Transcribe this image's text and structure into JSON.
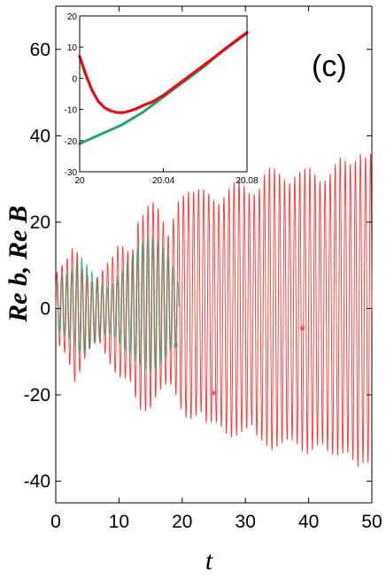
{
  "chart_data": [
    {
      "type": "line",
      "panel_label": "(c)",
      "xlabel": "t",
      "ylabel": "Re b, Re B",
      "xlim": [
        0,
        50
      ],
      "ylim": [
        -45,
        70
      ],
      "xticks": [
        0,
        10,
        20,
        30,
        40,
        50
      ],
      "yticks": [
        -40,
        -20,
        0,
        20,
        40,
        60
      ],
      "grid": false,
      "series": [
        {
          "color": "#ff2020",
          "kind": "oscillation-envelope",
          "envelope": {
            "t": [
              0,
              1,
              2,
              3,
              4,
              5,
              6,
              7,
              8,
              9,
              10,
              11,
              12,
              13,
              14,
              15,
              16,
              17,
              18,
              19,
              20,
              21,
              22,
              23,
              24,
              25,
              26,
              27,
              28,
              29,
              30,
              31,
              32,
              33,
              34,
              35,
              36,
              37,
              38,
              39,
              40,
              41,
              42,
              43,
              44,
              45,
              46,
              47,
              48,
              49,
              50
            ],
            "upper": [
              8,
              10,
              12,
              15,
              10,
              8,
              6,
              8,
              10,
              12,
              15,
              14,
              12,
              20,
              22,
              25,
              24,
              20,
              16,
              24,
              26,
              27,
              27,
              28,
              27,
              25,
              24,
              27,
              29,
              30,
              28,
              26,
              27,
              31,
              33,
              32,
              30,
              29,
              31,
              32,
              33,
              31,
              29,
              30,
              33,
              35,
              34,
              33,
              36,
              35,
              36
            ],
            "lower": [
              -8,
              -9,
              -12,
              -17,
              -14,
              -10,
              -8,
              -8,
              -11,
              -14,
              -16,
              -16,
              -17,
              -23,
              -24,
              -23,
              -20,
              -18,
              -17,
              -20,
              -24,
              -26,
              -25,
              -24,
              -27,
              -26,
              -27,
              -29,
              -30,
              -29,
              -28,
              -27,
              -30,
              -31,
              -33,
              -32,
              -31,
              -30,
              -31,
              -33,
              -34,
              -32,
              -31,
              -33,
              -34,
              -34,
              -33,
              -35,
              -37,
              -35,
              -37
            ]
          },
          "samples": 4000
        },
        {
          "color": "#2aa070",
          "kind": "oscillation-envelope",
          "envelope": {
            "t": [
              0,
              1,
              2,
              3,
              4,
              5,
              6,
              7,
              8,
              9,
              10,
              11,
              12,
              13,
              14,
              15,
              16,
              17,
              18,
              19,
              19.5
            ],
            "upper": [
              6,
              8,
              8,
              10,
              12,
              10,
              8,
              6,
              5,
              6,
              8,
              10,
              12,
              14,
              16,
              17,
              16,
              14,
              12,
              8,
              5
            ],
            "lower": [
              -5,
              -6,
              -7,
              -9,
              -11,
              -10,
              -8,
              -7,
              -6,
              -6,
              -8,
              -10,
              -11,
              -13,
              -14,
              -15,
              -14,
              -12,
              -10,
              -8,
              -5
            ]
          },
          "samples": 1600
        }
      ],
      "markers": [
        {
          "t": 25,
          "y": -20,
          "color": "#ff2020",
          "symbol": "*"
        },
        {
          "t": 39,
          "y": -5,
          "color": "#ff2020",
          "symbol": "*"
        },
        {
          "t": 19,
          "y": -9,
          "color": "#2aa070",
          "symbol": "*"
        }
      ]
    },
    {
      "type": "line",
      "role": "inset",
      "xlim": [
        20,
        20.08
      ],
      "ylim": [
        -30,
        20
      ],
      "xticks": [
        20,
        20.04,
        20.08
      ],
      "yticks": [
        -30,
        -20,
        -10,
        0,
        10,
        20
      ],
      "grid": false,
      "series": [
        {
          "color": "#2aa070",
          "x": [
            20,
            20.005,
            20.01,
            20.015,
            20.02,
            20.025,
            20.03,
            20.035,
            20.04,
            20.045,
            20.05,
            20.055,
            20.06,
            20.065,
            20.07,
            20.075,
            20.08
          ],
          "y": [
            -21,
            -19.5,
            -18,
            -16.5,
            -15,
            -13,
            -11,
            -8.5,
            -6,
            -3.5,
            -1,
            1.5,
            4,
            7,
            9.5,
            12,
            14.5
          ]
        },
        {
          "color": "#e01010",
          "x": [
            20,
            20.003,
            20.006,
            20.009,
            20.012,
            20.015,
            20.018,
            20.021,
            20.024,
            20.027,
            20.03,
            20.035,
            20.04,
            20.045,
            20.05,
            20.055,
            20.06,
            20.065,
            20.07,
            20.075,
            20.08
          ],
          "y": [
            7,
            1,
            -4,
            -7.5,
            -9.5,
            -10.5,
            -11,
            -11,
            -10.5,
            -9.8,
            -8.8,
            -7.5,
            -5.5,
            -3,
            -0.5,
            2,
            4.5,
            7,
            9.7,
            12.2,
            14.7
          ]
        }
      ]
    }
  ]
}
